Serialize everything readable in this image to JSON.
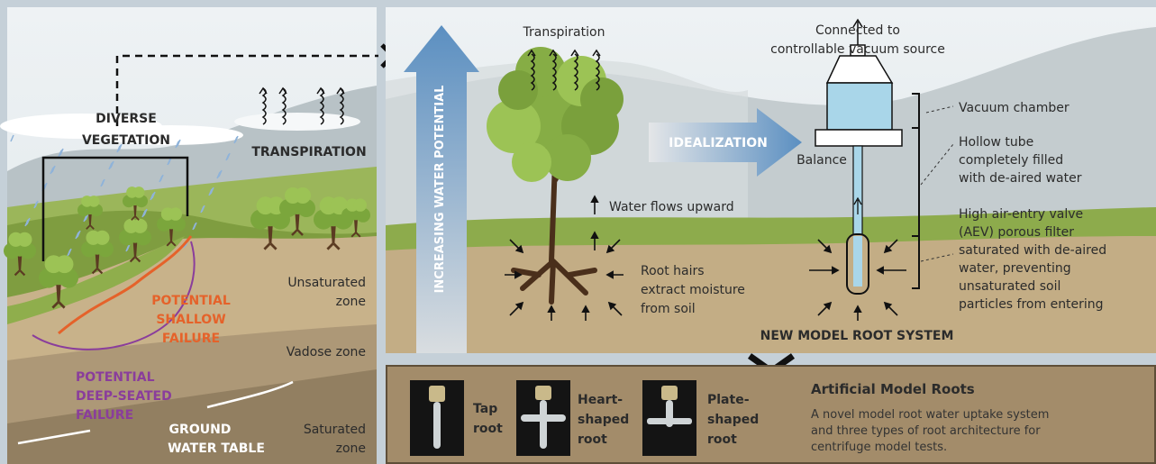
{
  "left_panel": {
    "diverse_vegetation": [
      "DIVERSE",
      "VEGETATION"
    ],
    "transpiration": "TRANSPIRATION",
    "shallow_failure": [
      "POTENTIAL",
      "SHALLOW",
      "FAILURE"
    ],
    "deep_failure": [
      "POTENTIAL",
      "DEEP-SEATED",
      "FAILURE"
    ],
    "ground_water_table": [
      "GROUND",
      "WATER TABLE"
    ],
    "unsaturated_zone": [
      "Unsaturated",
      "zone"
    ],
    "vadose_zone": "Vadose zone",
    "saturated_zone": [
      "Saturated",
      "zone"
    ]
  },
  "model_panel": {
    "water_potential_arrow": "INCREASING WATER POTENTIAL",
    "transpiration": "Transpiration",
    "idealization": "IDEALIZATION",
    "water_flows": "Water flows upward",
    "root_hairs": [
      "Root hairs",
      "extract moisture",
      "from soil"
    ],
    "vacuum_source": [
      "Connected to",
      "controllable vacuum source"
    ],
    "balance": "Balance",
    "vacuum_chamber": "Vacuum chamber",
    "hollow_tube": [
      "Hollow tube",
      "completely filled",
      "with de-aired water"
    ],
    "aev_filter": [
      "High air-entry valve",
      "(AEV) porous filter",
      "saturated with de-aired",
      "water, preventing",
      "unsaturated soil",
      "particles from entering"
    ],
    "caption": "NEW MODEL ROOT SYSTEM"
  },
  "roots_panel": {
    "roots": [
      {
        "label": [
          "Tap",
          "root"
        ]
      },
      {
        "label": [
          "Heart-",
          "shaped",
          "root"
        ]
      },
      {
        "label": [
          "Plate-",
          "shaped",
          "root"
        ]
      }
    ],
    "title": "Artificial Model Roots",
    "description": [
      "A novel model root water uptake system",
      "and three types of root architecture for",
      "centrifuge model tests."
    ]
  }
}
